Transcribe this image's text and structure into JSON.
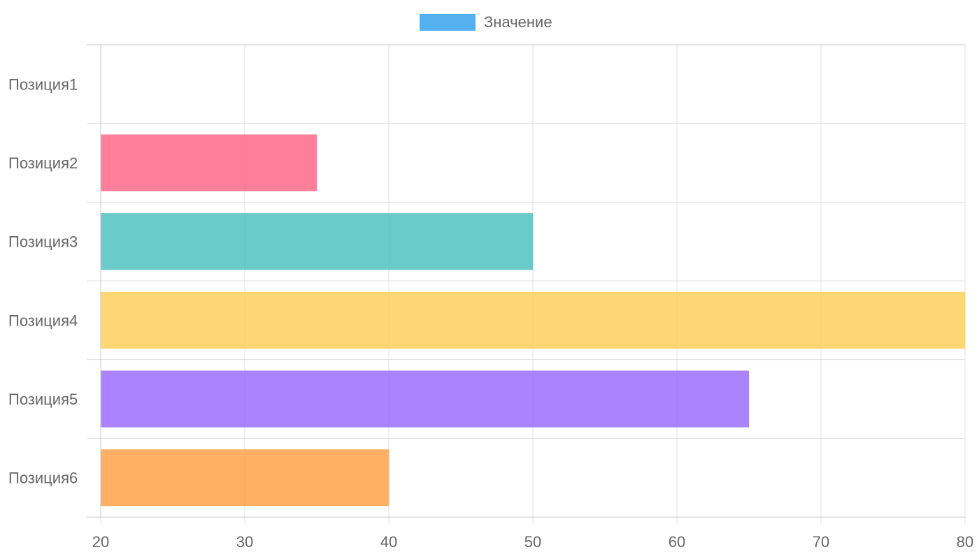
{
  "chart_data": {
    "type": "bar",
    "orientation": "horizontal",
    "categories": [
      "Позиция1",
      "Позиция2",
      "Позиция3",
      "Позиция4",
      "Позиция5",
      "Позиция6"
    ],
    "series": [
      {
        "name": "Значение",
        "values": [
          20,
          35,
          50,
          80,
          65,
          40
        ],
        "legend_color": "#36A2EB",
        "bar_colors": [
          "#4BC0C0",
          "#FF6384",
          "#4BC0C0",
          "#FFCD56",
          "#9966FF",
          "#FF9F40"
        ]
      }
    ],
    "xlim": [
      20,
      80
    ],
    "x_ticks": [
      20,
      30,
      40,
      50,
      60,
      70,
      80
    ],
    "title": "",
    "xlabel": "",
    "ylabel": "",
    "grid": true,
    "legend_position": "top-center"
  },
  "colors": {
    "grid": "#e0e0e0",
    "axis": "#c8c8c8",
    "text": "#666666"
  }
}
